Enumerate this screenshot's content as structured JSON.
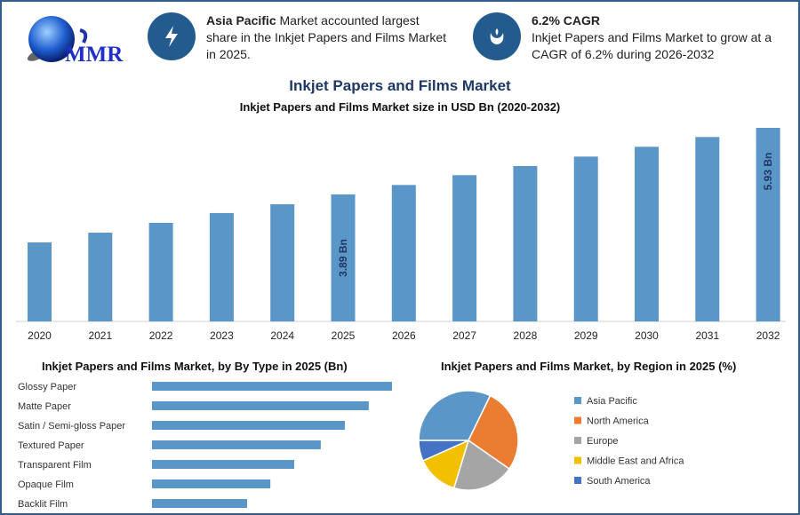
{
  "logo": {
    "text": "MMR"
  },
  "info1": {
    "bold": "Asia Pacific",
    "text": " Market accounted largest share in the Inkjet Papers and Films Market in 2025.",
    "icon": "lightning-icon"
  },
  "info2": {
    "bold": "6.2% CAGR",
    "text": "Inkjet Papers and Films Market to grow at a CAGR of 6.2% during 2026-2032",
    "icon": "growth-hand-icon"
  },
  "colors": {
    "bar": "#5b96c8",
    "accent": "#245b8f",
    "title": "#1f3864"
  },
  "chart_data": [
    {
      "type": "bar",
      "title": "Inkjet Papers and Films Market",
      "subtitle": "Inkjet Papers and Films Market size in USD Bn (2020-2032)",
      "categories": [
        "2020",
        "2021",
        "2022",
        "2023",
        "2024",
        "2025",
        "2026",
        "2027",
        "2028",
        "2029",
        "2030",
        "2031",
        "2032"
      ],
      "values": [
        2.42,
        2.72,
        3.02,
        3.32,
        3.59,
        3.89,
        4.18,
        4.48,
        4.76,
        5.05,
        5.35,
        5.65,
        5.93
      ],
      "data_labels": {
        "2025": "3.89 Bn",
        "2032": "5.93 Bn"
      },
      "ylim": [
        0,
        6
      ],
      "grid": false
    },
    {
      "type": "bar",
      "orientation": "horizontal",
      "title": "Inkjet Papers and Films Market, by By Type in 2025 (Bn)",
      "categories": [
        "Glossy Paper",
        "Matte Paper",
        "Satin / Semi-gloss Paper",
        "Textured Paper",
        "Transparent Film",
        "Opaque Film",
        "Backlit Film"
      ],
      "values": [
        0.795,
        0.718,
        0.639,
        0.559,
        0.471,
        0.392,
        0.315
      ],
      "xlim": [
        0,
        0.8
      ]
    },
    {
      "type": "pie",
      "title": "Inkjet Papers and Films Market, by Region in 2025 (%)",
      "legend": "right",
      "slices": [
        {
          "label": "Asia Pacific",
          "value": 32.2,
          "color": "#5b96c8"
        },
        {
          "label": "North America",
          "value": 27.5,
          "color": "#ea7d32"
        },
        {
          "label": "Europe",
          "value": 20.0,
          "color": "#a5a5a5"
        },
        {
          "label": "Middle East and Africa",
          "value": 13.6,
          "color": "#f2c000"
        },
        {
          "label": "South America",
          "value": 6.7,
          "color": "#4472c4"
        }
      ]
    }
  ]
}
